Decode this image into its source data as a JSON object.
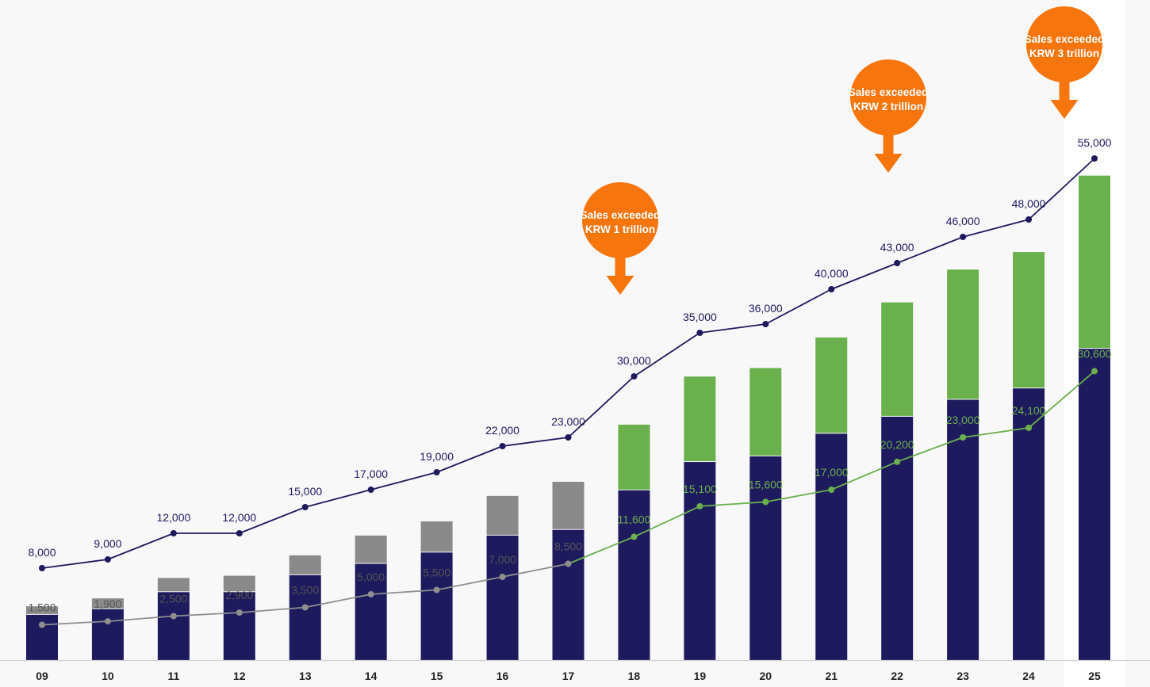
{
  "chart_data": {
    "type": "bar",
    "categories": [
      "09",
      "10",
      "11",
      "12",
      "13",
      "14",
      "15",
      "16",
      "17",
      "18",
      "19",
      "20",
      "21",
      "22",
      "23",
      "24",
      "25"
    ],
    "series": [
      {
        "type": "bar",
        "stack": "total",
        "values": [
          8000,
          9000,
          12000,
          12000,
          15000,
          17000,
          19000,
          22000,
          23000,
          30000,
          35000,
          36000,
          40000,
          43000,
          46000,
          48000,
          55000
        ]
      },
      {
        "type": "bar",
        "stack": "total",
        "values": [
          1500,
          1900,
          2500,
          2900,
          3500,
          5000,
          5500,
          7000,
          8500,
          11600,
          15100,
          15600,
          17000,
          20200,
          23000,
          24100,
          30600
        ]
      },
      {
        "type": "line",
        "values": [
          8000,
          9000,
          12000,
          12000,
          15000,
          17000,
          19000,
          22000,
          23000,
          30000,
          35000,
          36000,
          40000,
          43000,
          46000,
          48000,
          55000
        ],
        "labels": [
          "8,000",
          "9,000",
          "12,000",
          "12,000",
          "15,000",
          "17,000",
          "19,000",
          "22,000",
          "23,000",
          "30,000",
          "35,000",
          "36,000",
          "40,000",
          "43,000",
          "46,000",
          "48,000",
          "55,000"
        ]
      },
      {
        "type": "line",
        "values": [
          1500,
          1900,
          2500,
          2900,
          3500,
          5000,
          5500,
          7000,
          8500,
          11600,
          15100,
          15600,
          17000,
          20200,
          23000,
          24100,
          30600
        ],
        "labels": [
          "1,500",
          "1,900",
          "2,500",
          "2,900",
          "3,500",
          "5,000",
          "5,500",
          "7,000",
          "8,500",
          "11,600",
          "15,100",
          "15,600",
          "17,000",
          "20,200",
          "23,000",
          "24,100",
          "30,600"
        ]
      }
    ],
    "annotations": [
      {
        "text_line1": "Sales exceeded",
        "text_line2": "KRW 1 trillion",
        "category": "18"
      },
      {
        "text_line1": "Sales exceeded",
        "text_line2": "KRW 2 trillion",
        "category": "21"
      },
      {
        "text_line1": "Sales exceeded",
        "text_line2": "KRW 3 trillion",
        "category": "25"
      }
    ],
    "highlight_category": "25",
    "title": "",
    "xlabel": "",
    "ylabel": "",
    "grid": false,
    "legend": "none",
    "colors": {
      "navy": "#1e1a5e",
      "gray_bar": "#8a8a8a",
      "green_bar": "#6ab04c",
      "gray_line": "#8f8f8f",
      "green_line": "#6ab04c",
      "navy_line": "#1e1a5e",
      "callout": "#f7750d",
      "background": "#f8f8f8",
      "highlight_column": "#ffffff"
    }
  }
}
